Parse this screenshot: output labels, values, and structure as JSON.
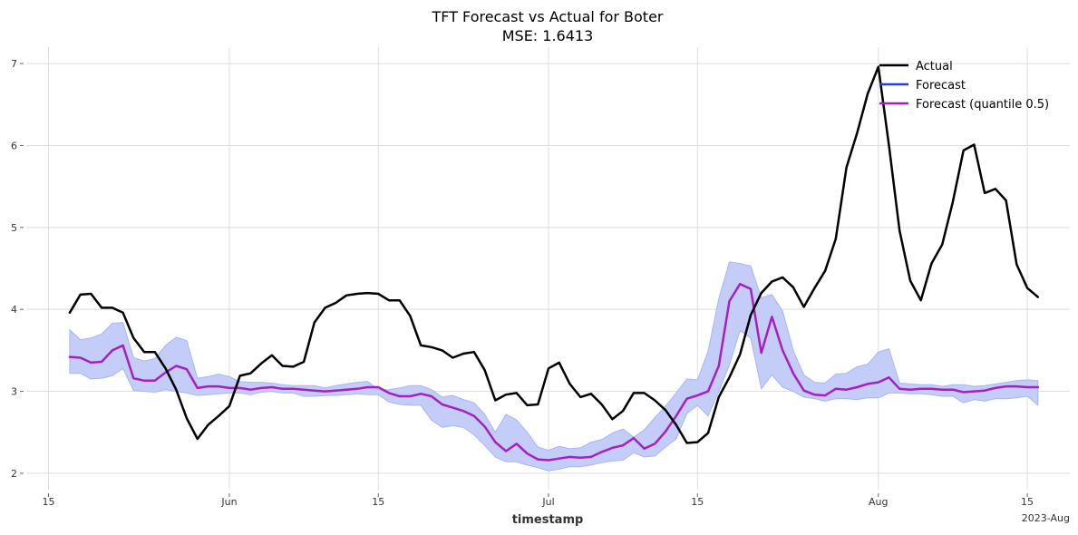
{
  "chart_data": {
    "type": "line",
    "title": "TFT Forecast vs Actual for Boter",
    "subtitle": "MSE: 1.6413",
    "xlabel": "timestamp",
    "ylabel": "",
    "ylim": [
      1.8,
      7.2
    ],
    "xlim": [
      "2023-05-13",
      "2023-08-19"
    ],
    "grid": true,
    "legend_position": "top-right",
    "x_ticks": [
      {
        "date": "2023-05-15",
        "label": "15"
      },
      {
        "date": "2023-06-01",
        "label": "Jun"
      },
      {
        "date": "2023-06-15",
        "label": "15"
      },
      {
        "date": "2023-07-01",
        "label": "Jul"
      },
      {
        "date": "2023-07-15",
        "label": "15"
      },
      {
        "date": "2023-08-01",
        "label": "Aug"
      },
      {
        "date": "2023-08-15",
        "label": "15"
      }
    ],
    "x_offset_label": "2023-Aug",
    "y_ticks": [
      2,
      3,
      4,
      5,
      6,
      7
    ],
    "start_date": "2023-05-17",
    "series": [
      {
        "name": "Actual",
        "color": "#000000",
        "values": [
          3.96,
          4.18,
          4.19,
          4.02,
          4.02,
          3.96,
          3.65,
          3.48,
          3.48,
          3.28,
          3.02,
          2.67,
          2.42,
          2.59,
          2.7,
          2.82,
          3.19,
          3.22,
          3.34,
          3.44,
          3.31,
          3.3,
          3.36,
          3.84,
          4.02,
          4.08,
          4.17,
          4.19,
          4.2,
          4.19,
          4.11,
          4.11,
          3.92,
          3.56,
          3.54,
          3.5,
          3.41,
          3.46,
          3.48,
          3.26,
          2.89,
          2.96,
          2.98,
          2.83,
          2.84,
          3.28,
          3.35,
          3.09,
          2.93,
          2.97,
          2.84,
          2.66,
          2.76,
          2.98,
          2.98,
          2.89,
          2.77,
          2.59,
          2.37,
          2.38,
          2.49,
          2.93,
          3.17,
          3.45,
          3.93,
          4.2,
          4.34,
          4.39,
          4.27,
          4.03,
          4.26,
          4.47,
          4.86,
          5.73,
          6.15,
          6.63,
          6.96,
          6.0,
          4.96,
          4.35,
          4.11,
          4.56,
          4.79,
          5.31,
          5.94,
          6.01,
          5.42,
          5.47,
          5.33,
          4.55,
          4.26,
          4.15
        ]
      },
      {
        "name": "Forecast",
        "color": "#1f3fe0",
        "band_color": "#c3cdf8",
        "lower": [
          3.22,
          3.22,
          3.15,
          3.16,
          3.19,
          3.28,
          3.01,
          3.0,
          2.99,
          3.02,
          3.0,
          2.98,
          2.95,
          2.96,
          2.97,
          2.98,
          2.98,
          2.96,
          2.99,
          3.0,
          2.98,
          2.98,
          2.94,
          2.94,
          2.95,
          2.95,
          2.96,
          2.97,
          2.96,
          2.96,
          2.87,
          2.84,
          2.83,
          2.83,
          2.65,
          2.56,
          2.58,
          2.56,
          2.47,
          2.34,
          2.2,
          2.14,
          2.14,
          2.1,
          2.07,
          2.03,
          2.05,
          2.08,
          2.08,
          2.1,
          2.13,
          2.15,
          2.16,
          2.25,
          2.2,
          2.21,
          2.32,
          2.42,
          2.73,
          2.83,
          2.7,
          3.0,
          3.32,
          3.74,
          3.65,
          3.03,
          3.2,
          3.05,
          3.0,
          2.93,
          2.91,
          2.88,
          2.91,
          2.91,
          2.9,
          2.92,
          2.92,
          2.98,
          2.98,
          2.97,
          2.97,
          2.96,
          2.94,
          2.94,
          2.86,
          2.9,
          2.88,
          2.91,
          2.91,
          2.92,
          2.94,
          2.83
        ],
        "upper": [
          3.75,
          3.63,
          3.65,
          3.7,
          3.83,
          3.84,
          3.41,
          3.37,
          3.4,
          3.56,
          3.66,
          3.62,
          3.16,
          3.18,
          3.21,
          3.18,
          3.12,
          3.11,
          3.11,
          3.1,
          3.08,
          3.07,
          3.07,
          3.07,
          3.04,
          3.07,
          3.09,
          3.11,
          3.12,
          3.02,
          3.02,
          3.04,
          3.07,
          3.07,
          3.02,
          2.93,
          2.95,
          2.9,
          2.86,
          2.72,
          2.5,
          2.72,
          2.65,
          2.5,
          2.32,
          2.28,
          2.33,
          2.3,
          2.31,
          2.38,
          2.41,
          2.49,
          2.54,
          2.44,
          2.53,
          2.68,
          2.82,
          2.98,
          3.15,
          3.14,
          3.49,
          4.13,
          4.58,
          4.56,
          4.53,
          4.14,
          4.18,
          3.98,
          3.5,
          3.2,
          3.11,
          3.1,
          3.21,
          3.22,
          3.3,
          3.33,
          3.48,
          3.52,
          3.1,
          3.09,
          3.08,
          3.08,
          3.06,
          3.08,
          3.08,
          3.06,
          3.07,
          3.09,
          3.11,
          3.13,
          3.14,
          3.13
        ]
      },
      {
        "name": "Forecast (quantile 0.5)",
        "color": "#a81fbf",
        "values": [
          3.42,
          3.41,
          3.35,
          3.36,
          3.5,
          3.56,
          3.16,
          3.13,
          3.13,
          3.23,
          3.31,
          3.27,
          3.04,
          3.06,
          3.06,
          3.04,
          3.04,
          3.02,
          3.04,
          3.05,
          3.03,
          3.03,
          3.02,
          3.01,
          3.0,
          3.01,
          3.02,
          3.03,
          3.05,
          3.05,
          2.98,
          2.94,
          2.94,
          2.97,
          2.94,
          2.84,
          2.8,
          2.76,
          2.7,
          2.57,
          2.38,
          2.27,
          2.36,
          2.24,
          2.17,
          2.16,
          2.18,
          2.2,
          2.19,
          2.2,
          2.26,
          2.31,
          2.34,
          2.43,
          2.3,
          2.36,
          2.51,
          2.7,
          2.91,
          2.95,
          3.0,
          3.31,
          4.1,
          4.31,
          4.25,
          3.47,
          3.91,
          3.5,
          3.22,
          3.01,
          2.96,
          2.95,
          3.03,
          3.02,
          3.05,
          3.09,
          3.11,
          3.17,
          3.03,
          3.02,
          3.03,
          3.03,
          3.02,
          3.02,
          2.99,
          3.0,
          3.01,
          3.04,
          3.06,
          3.06,
          3.05,
          3.05
        ]
      }
    ]
  }
}
